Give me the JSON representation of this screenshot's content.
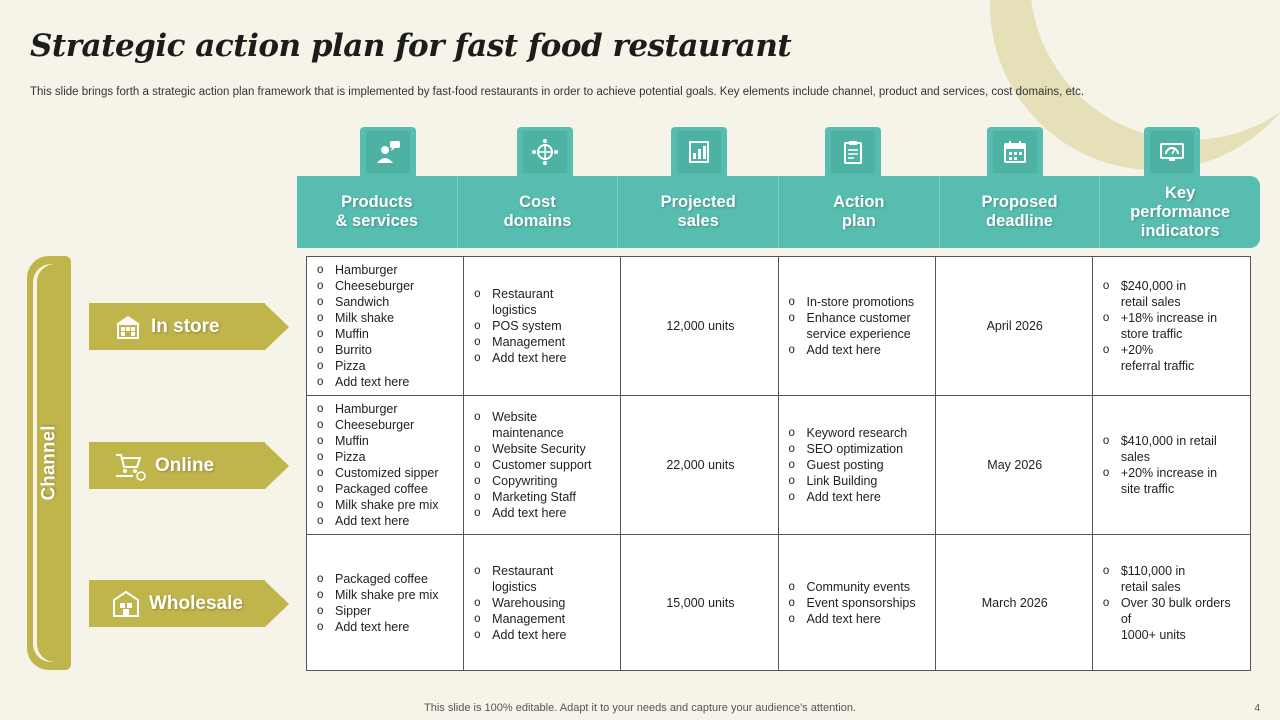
{
  "title": "Strategic action plan for fast food restaurant",
  "subtitle": "This slide brings forth a strategic action plan framework that is implemented by fast-food restaurants in order to achieve potential goals. Key elements include channel, product and services, cost domains, etc.",
  "footer": "This slide is 100% editable. Adapt it to your needs and capture your audience's attention.",
  "page_number": "4",
  "colors": {
    "teal": "#57bdb0",
    "olive": "#bfb54a",
    "background": "#f6f4e8"
  },
  "channel_label": "Channel",
  "columns": [
    {
      "label": "Products\n& services",
      "icon": "person-chat-icon"
    },
    {
      "label": "Cost\ndomains",
      "icon": "globe-network-icon"
    },
    {
      "label": "Projected\nsales",
      "icon": "sales-chart-icon"
    },
    {
      "label": "Action\nplan",
      "icon": "clipboard-icon"
    },
    {
      "label": "Proposed\ndeadline",
      "icon": "calendar-icon"
    },
    {
      "label": "Key\nperformance\nindicators",
      "icon": "dashboard-monitor-icon"
    }
  ],
  "rows": [
    {
      "channel": "In store",
      "icon": "store-icon",
      "products": [
        "Hamburger",
        "Cheeseburger",
        "Sandwich",
        "Milk shake",
        "Muffin",
        "Burrito",
        "Pizza",
        "Add text here"
      ],
      "cost_domains": [
        "Restaurant\nlogistics",
        "POS system",
        "Management",
        "Add text here"
      ],
      "projected_sales": "12,000 units",
      "action_plan": [
        "In-store promotions",
        "Enhance customer\nservice experience",
        "Add text here"
      ],
      "deadline": "April 2026",
      "kpis": [
        "$240,000 in\nretail sales",
        "+18% increase in\nstore traffic",
        "+20%\nreferral  traffic"
      ]
    },
    {
      "channel": "Online",
      "icon": "online-cart-icon",
      "products": [
        "Hamburger",
        "Cheeseburger",
        "Muffin",
        "Pizza",
        "Customized sipper",
        "Packaged coffee",
        "Milk shake pre mix",
        "Add text here"
      ],
      "cost_domains": [
        "Website\nmaintenance",
        "Website Security",
        "Customer support",
        "Copywriting",
        "Marketing Staff",
        "Add text here"
      ],
      "projected_sales": "22,000 units",
      "action_plan": [
        "Keyword research",
        "SEO optimization",
        "Guest posting",
        "Link Building",
        "Add text here"
      ],
      "deadline": "May 2026",
      "kpis": [
        "$410,000  in retail\nsales",
        "+20% increase in\nsite traffic"
      ]
    },
    {
      "channel": "Wholesale",
      "icon": "warehouse-icon",
      "products": [
        "Packaged coffee",
        "Milk shake pre mix",
        "Sipper",
        "Add text here"
      ],
      "cost_domains": [
        "Restaurant\nlogistics",
        "Warehousing",
        "Management",
        "Add text here"
      ],
      "projected_sales": "15,000 units",
      "action_plan": [
        "Community events",
        "Event sponsorships",
        "Add text here"
      ],
      "deadline": "March 2026",
      "kpis": [
        "$110,000 in\nretail sales",
        "Over 30 bulk orders\nof\n1000+ units"
      ]
    }
  ]
}
